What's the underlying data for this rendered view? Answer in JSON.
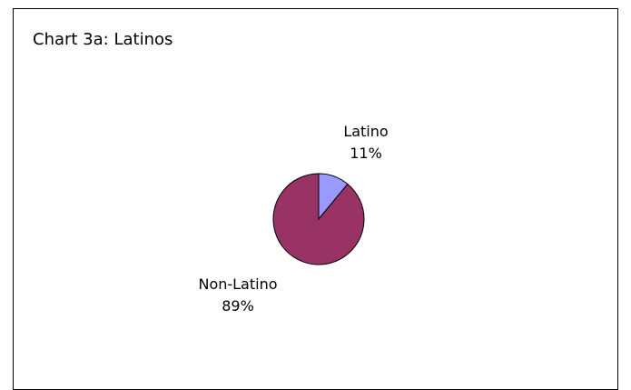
{
  "chart_data": {
    "type": "pie",
    "title": "Chart 3a: Latinos",
    "slices": [
      {
        "name": "Latino",
        "value": 11,
        "percent_label": "11%",
        "color": "#9999ff"
      },
      {
        "name": "Non-Latino",
        "value": 89,
        "percent_label": "89%",
        "color": "#993366"
      }
    ],
    "start_angle_deg": 0,
    "direction": "clockwise",
    "legend": "none",
    "outline_color": "#000000"
  }
}
